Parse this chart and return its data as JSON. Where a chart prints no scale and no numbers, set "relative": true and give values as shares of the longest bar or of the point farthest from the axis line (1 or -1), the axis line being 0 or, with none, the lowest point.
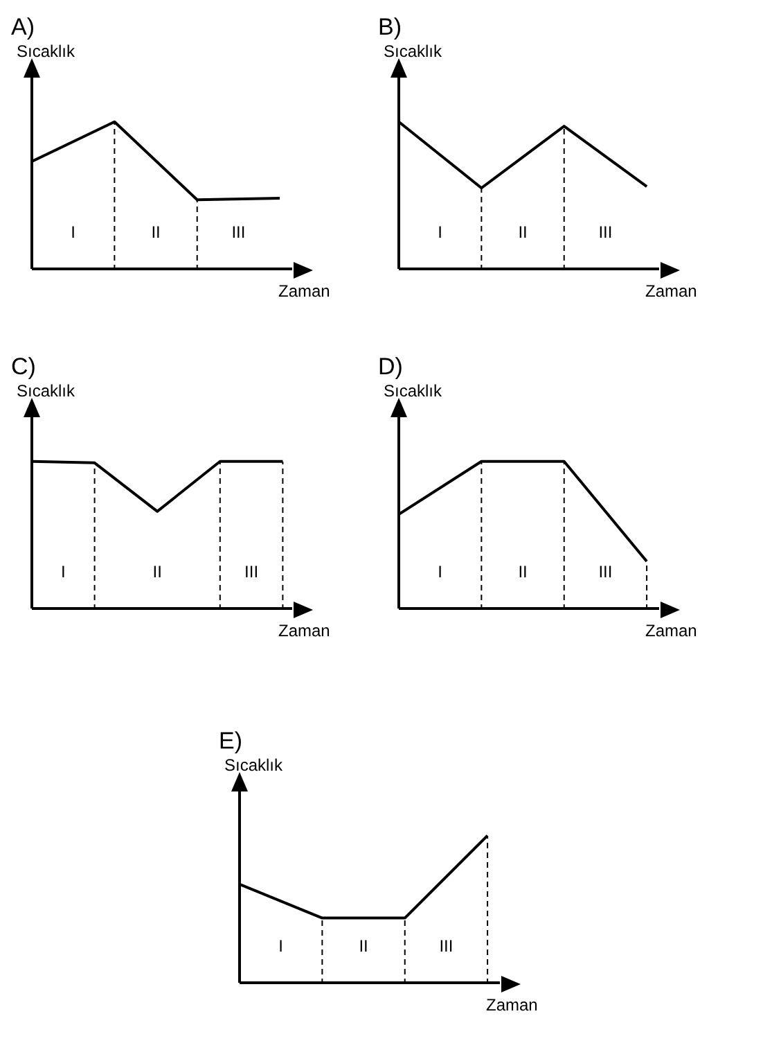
{
  "chart_data": [
    {
      "type": "line",
      "title": "A)",
      "ylabel": "Sıcaklık",
      "xlabel": "Zaman",
      "relative": true,
      "categories": [
        null,
        null,
        null,
        null
      ],
      "values": [
        0.73,
        1,
        0.47,
        0.48
      ],
      "color": "#000000",
      "annotations": [
        "I",
        "II",
        "III"
      ]
    },
    {
      "type": "line",
      "title": "B)",
      "ylabel": "Sıcaklık",
      "xlabel": "Zaman",
      "relative": true,
      "categories": [
        null,
        null,
        null,
        null
      ],
      "values": [
        1,
        0.55,
        0.97,
        0.56
      ],
      "color": "#000000",
      "annotations": [
        "I",
        "II",
        "III"
      ]
    },
    {
      "type": "line",
      "title": "C)",
      "ylabel": "Sıcaklık",
      "xlabel": "Zaman",
      "relative": true,
      "categories": [
        null,
        null,
        null,
        null,
        null
      ],
      "values": [
        1,
        0.99,
        0.66,
        1,
        1
      ],
      "color": "#000000",
      "annotations": [
        "I",
        "II",
        "III"
      ]
    },
    {
      "type": "line",
      "title": "D)",
      "ylabel": "Sıcaklık",
      "xlabel": "Zaman",
      "relative": true,
      "categories": [
        null,
        null,
        null,
        null
      ],
      "values": [
        0.64,
        1,
        1,
        0.32
      ],
      "color": "#000000",
      "annotations": [
        "I",
        "II",
        "III"
      ]
    },
    {
      "type": "line",
      "title": "E)",
      "ylabel": "Sıcaklık",
      "xlabel": "Zaman",
      "relative": true,
      "categories": [
        null,
        null,
        null,
        null
      ],
      "values": [
        0.67,
        0.44,
        0.44,
        1
      ],
      "color": "#000000",
      "annotations": [
        "I",
        "II",
        "III"
      ]
    }
  ]
}
